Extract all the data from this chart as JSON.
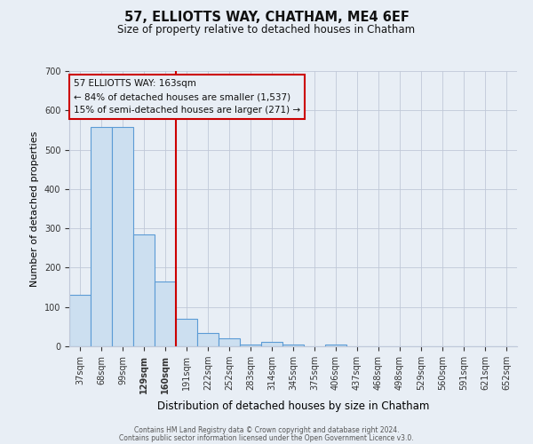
{
  "title": "57, ELLIOTTS WAY, CHATHAM, ME4 6EF",
  "subtitle": "Size of property relative to detached houses in Chatham",
  "xlabel": "Distribution of detached houses by size in Chatham",
  "ylabel": "Number of detached properties",
  "bar_labels": [
    "37sqm",
    "68sqm",
    "99sqm",
    "129sqm",
    "160sqm",
    "191sqm",
    "222sqm",
    "252sqm",
    "283sqm",
    "314sqm",
    "345sqm",
    "375sqm",
    "406sqm",
    "437sqm",
    "468sqm",
    "498sqm",
    "529sqm",
    "560sqm",
    "591sqm",
    "621sqm",
    "652sqm"
  ],
  "bar_values": [
    130,
    557,
    557,
    285,
    165,
    70,
    33,
    20,
    5,
    12,
    5,
    0,
    5,
    0,
    0,
    0,
    0,
    0,
    0,
    0,
    0
  ],
  "bar_color": "#ccdff0",
  "bar_edge_color": "#5b9bd5",
  "background_color": "#e8eef5",
  "property_line_x": 4.5,
  "property_line_color": "#cc0000",
  "annotation_line1": "57 ELLIOTTS WAY: 163sqm",
  "annotation_line2": "← 84% of detached houses are smaller (1,537)",
  "annotation_line3": "15% of semi-detached houses are larger (271) →",
  "annotation_box_edge": "#cc0000",
  "ylim": [
    0,
    700
  ],
  "yticks": [
    0,
    100,
    200,
    300,
    400,
    500,
    600,
    700
  ],
  "footer_line1": "Contains HM Land Registry data © Crown copyright and database right 2024.",
  "footer_line2": "Contains public sector information licensed under the Open Government Licence v3.0."
}
